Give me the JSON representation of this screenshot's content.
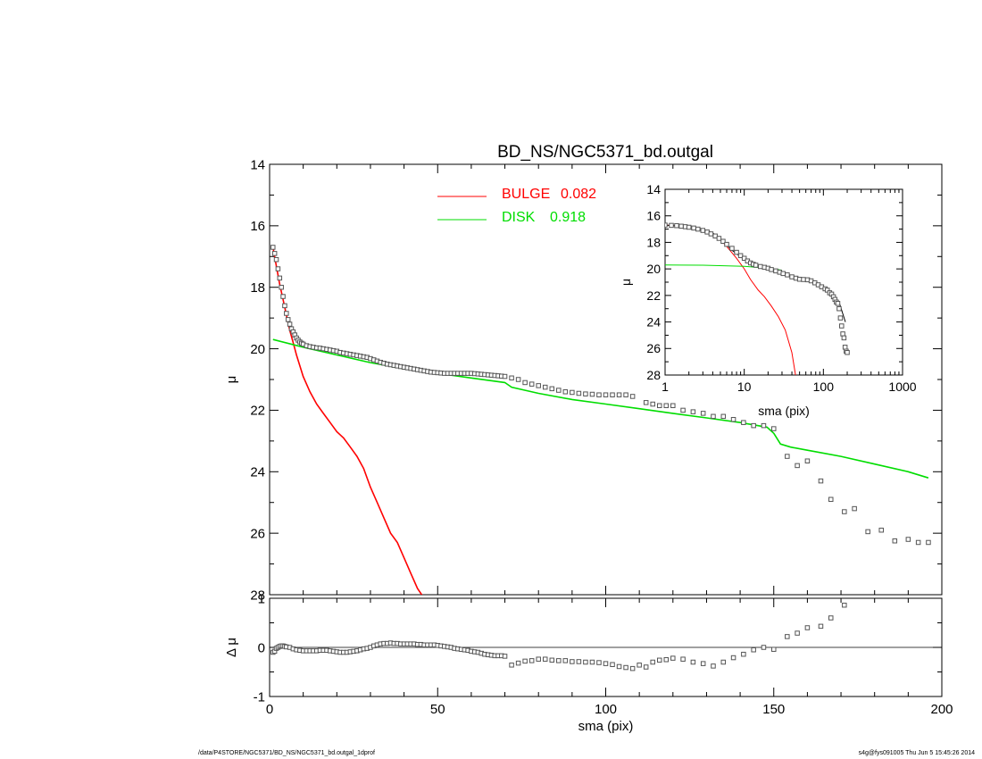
{
  "footer": {
    "path": "/data/P4STORE/NGC5371/BD_NS/NGC5371_bd.outgal_1dprof",
    "stamp": "s4g@fys091005  Thu Jun  5 15:45:26 2014"
  },
  "colors": {
    "bulge": "#ff0000",
    "disk": "#00dd00",
    "axes": "#000000",
    "points": "#555555"
  },
  "chart_data": [
    {
      "id": "main",
      "type": "line",
      "title": "BD_NS/NGC5371_bd.outgal",
      "xlabel": "",
      "ylabel": "μ",
      "xlim": [
        0,
        200
      ],
      "ylim": [
        28,
        14
      ],
      "y_inverted": true,
      "xticks": [
        0,
        50,
        100,
        150,
        200
      ],
      "yticks": [
        14,
        16,
        18,
        20,
        22,
        24,
        26,
        28
      ],
      "legend": [
        {
          "label": "BULGE",
          "value": "0.082",
          "color": "#ff0000"
        },
        {
          "label": "DISK",
          "value": "0.918",
          "color": "#00dd00"
        }
      ],
      "legend_placement": "top-center",
      "series": [
        {
          "name": "BULGE",
          "color": "#ff0000",
          "style": "line",
          "x": [
            1,
            2,
            3,
            4,
            5,
            6,
            7,
            8,
            10,
            12,
            14,
            16,
            18,
            20,
            22,
            24,
            26,
            28,
            30,
            32,
            34,
            36,
            38,
            40,
            42,
            44,
            46.5
          ],
          "y": [
            16.7,
            17.3,
            17.9,
            18.4,
            18.9,
            19.4,
            19.8,
            20.2,
            20.9,
            21.4,
            21.8,
            22.1,
            22.4,
            22.7,
            22.9,
            23.2,
            23.5,
            23.9,
            24.5,
            25.0,
            25.5,
            26.0,
            26.3,
            26.8,
            27.3,
            27.8,
            28.2
          ]
        },
        {
          "name": "DISK",
          "color": "#00dd00",
          "style": "line",
          "x": [
            1,
            10,
            20,
            30,
            40,
            50,
            60,
            70,
            72,
            80,
            90,
            100,
            110,
            120,
            130,
            140,
            148,
            150,
            152,
            155,
            160,
            170,
            180,
            190,
            196
          ],
          "y": [
            19.7,
            19.95,
            20.2,
            20.45,
            20.65,
            20.8,
            20.95,
            21.1,
            21.25,
            21.45,
            21.65,
            21.8,
            21.95,
            22.1,
            22.25,
            22.4,
            22.55,
            22.75,
            23.1,
            23.2,
            23.3,
            23.5,
            23.75,
            24.0,
            24.2
          ]
        },
        {
          "name": "data",
          "color": "#555555",
          "style": "squares",
          "x": [
            1,
            1.5,
            2,
            2.5,
            3,
            3.5,
            4,
            4.5,
            5,
            5.5,
            6,
            6.5,
            7,
            7.5,
            8,
            8.5,
            9,
            9.5,
            10,
            11,
            12,
            13,
            14,
            15,
            16,
            17,
            18,
            19,
            20,
            21,
            22,
            23,
            24,
            25,
            26,
            27,
            28,
            29,
            30,
            31,
            32,
            33,
            34,
            35,
            36,
            37,
            38,
            39,
            40,
            41,
            42,
            43,
            44,
            45,
            46,
            47,
            48,
            49,
            50,
            51,
            52,
            53,
            54,
            55,
            56,
            57,
            58,
            59,
            60,
            61,
            62,
            63,
            64,
            65,
            66,
            67,
            68,
            69,
            70,
            72,
            74,
            76,
            78,
            80,
            82,
            84,
            86,
            88,
            90,
            92,
            94,
            96,
            98,
            100,
            102,
            104,
            106,
            108,
            112,
            114,
            116,
            118,
            120,
            123,
            126,
            129,
            132,
            135,
            138,
            141,
            144,
            147,
            150,
            154,
            157,
            160,
            164,
            167,
            171,
            174,
            178,
            182,
            186,
            190,
            193,
            196
          ],
          "y": [
            16.7,
            16.9,
            17.1,
            17.4,
            17.7,
            18.0,
            18.3,
            18.6,
            18.85,
            19.05,
            19.2,
            19.35,
            19.45,
            19.55,
            19.65,
            19.72,
            19.78,
            19.82,
            19.85,
            19.9,
            19.93,
            19.95,
            19.97,
            19.98,
            20.0,
            20.02,
            20.04,
            20.06,
            20.08,
            20.12,
            20.14,
            20.16,
            20.18,
            20.2,
            20.22,
            20.24,
            20.26,
            20.28,
            20.32,
            20.36,
            20.4,
            20.44,
            20.47,
            20.5,
            20.52,
            20.54,
            20.56,
            20.58,
            20.6,
            20.62,
            20.64,
            20.66,
            20.68,
            20.7,
            20.72,
            20.74,
            20.76,
            20.77,
            20.78,
            20.79,
            20.8,
            20.8,
            20.8,
            20.8,
            20.8,
            20.8,
            20.8,
            20.8,
            20.8,
            20.81,
            20.82,
            20.83,
            20.84,
            20.85,
            20.86,
            20.87,
            20.88,
            20.89,
            20.9,
            20.95,
            21.0,
            21.1,
            21.15,
            21.2,
            21.25,
            21.3,
            21.35,
            21.4,
            21.42,
            21.45,
            21.47,
            21.48,
            21.5,
            21.5,
            21.5,
            21.5,
            21.5,
            21.55,
            21.75,
            21.8,
            21.85,
            21.85,
            21.85,
            22.0,
            22.05,
            22.1,
            22.2,
            22.2,
            22.3,
            22.4,
            22.5,
            22.5,
            22.6,
            23.5,
            23.8,
            23.65,
            24.3,
            24.9,
            25.3,
            25.2,
            25.95,
            25.9,
            26.25,
            26.2,
            26.3,
            26.3
          ]
        }
      ]
    },
    {
      "id": "residual",
      "type": "scatter",
      "xlabel": "sma (pix)",
      "ylabel": "Δ μ",
      "xlim": [
        0,
        200
      ],
      "ylim": [
        -1,
        1
      ],
      "xticks": [
        0,
        50,
        100,
        150,
        200
      ],
      "yticks": [
        -1,
        0,
        1
      ],
      "series": [
        {
          "name": "residual",
          "color": "#555555",
          "style": "squares",
          "x": [
            1,
            1.5,
            2,
            2.5,
            3,
            3.5,
            4,
            4.5,
            5,
            6,
            7,
            8,
            9,
            10,
            11,
            12,
            13,
            14,
            15,
            16,
            17,
            18,
            19,
            20,
            21,
            22,
            23,
            24,
            25,
            26,
            27,
            28,
            29,
            30,
            31,
            32,
            33,
            34,
            35,
            36,
            37,
            38,
            39,
            40,
            41,
            42,
            43,
            44,
            45,
            46,
            47,
            48,
            49,
            50,
            51,
            52,
            53,
            54,
            55,
            56,
            57,
            58,
            59,
            60,
            61,
            62,
            63,
            64,
            65,
            66,
            67,
            68,
            69,
            70,
            72,
            74,
            76,
            78,
            80,
            82,
            84,
            86,
            88,
            90,
            92,
            94,
            96,
            98,
            100,
            102,
            104,
            106,
            108,
            110,
            112,
            114,
            116,
            118,
            120,
            123,
            126,
            129,
            132,
            135,
            138,
            141,
            144,
            147,
            150,
            154,
            157,
            160,
            164,
            167,
            171
          ],
          "y": [
            -0.1,
            -0.08,
            -0.02,
            0.0,
            0.02,
            0.03,
            0.03,
            0.02,
            0.01,
            0.0,
            -0.03,
            -0.05,
            -0.06,
            -0.07,
            -0.07,
            -0.07,
            -0.07,
            -0.07,
            -0.06,
            -0.06,
            -0.06,
            -0.07,
            -0.08,
            -0.09,
            -0.1,
            -0.1,
            -0.1,
            -0.09,
            -0.08,
            -0.07,
            -0.05,
            -0.03,
            -0.02,
            0.0,
            0.03,
            0.05,
            0.07,
            0.08,
            0.08,
            0.09,
            0.08,
            0.08,
            0.07,
            0.07,
            0.07,
            0.07,
            0.07,
            0.06,
            0.06,
            0.05,
            0.05,
            0.05,
            0.05,
            0.04,
            0.03,
            0.02,
            0.01,
            0.0,
            -0.02,
            -0.03,
            -0.04,
            -0.05,
            -0.06,
            -0.08,
            -0.09,
            -0.1,
            -0.12,
            -0.14,
            -0.15,
            -0.16,
            -0.17,
            -0.17,
            -0.17,
            -0.18,
            -0.36,
            -0.32,
            -0.28,
            -0.27,
            -0.24,
            -0.24,
            -0.26,
            -0.27,
            -0.27,
            -0.29,
            -0.29,
            -0.3,
            -0.3,
            -0.31,
            -0.33,
            -0.35,
            -0.39,
            -0.41,
            -0.43,
            -0.36,
            -0.4,
            -0.3,
            -0.26,
            -0.25,
            -0.22,
            -0.24,
            -0.3,
            -0.33,
            -0.38,
            -0.3,
            -0.21,
            -0.14,
            -0.05,
            0.0,
            -0.04,
            0.22,
            0.29,
            0.4,
            0.43,
            0.6,
            0.86
          ]
        }
      ]
    },
    {
      "id": "inset",
      "type": "line",
      "xlabel": "sma (pix)",
      "ylabel": "μ",
      "xlim": [
        1,
        1000
      ],
      "xscale": "log",
      "ylim": [
        28,
        14
      ],
      "y_inverted": true,
      "xticks": [
        1,
        10,
        100,
        1000
      ],
      "yticks": [
        14,
        16,
        18,
        20,
        22,
        24,
        26,
        28
      ],
      "series": [
        {
          "name": "BULGE",
          "color": "#ff0000",
          "style": "line",
          "x": [
            1,
            2,
            3,
            4,
            5,
            6,
            8,
            10,
            12,
            15,
            18,
            22,
            27,
            33,
            40,
            45
          ],
          "y": [
            16.7,
            16.8,
            17.0,
            17.3,
            17.8,
            18.3,
            19.2,
            20.0,
            20.8,
            21.6,
            22.1,
            22.8,
            23.6,
            24.6,
            26.3,
            28.2
          ]
        },
        {
          "name": "DISK",
          "color": "#00dd00",
          "style": "line",
          "x": [
            1,
            3,
            10,
            20,
            30
          ],
          "y": [
            19.7,
            19.72,
            19.8,
            19.95,
            20.1
          ]
        },
        {
          "name": "model",
          "color": "#000000",
          "style": "line",
          "x": [
            1,
            2,
            3,
            4,
            5,
            7,
            10,
            15,
            20,
            30,
            50,
            80,
            100,
            130,
            160,
            190
          ],
          "y": [
            16.7,
            16.8,
            17.0,
            17.3,
            17.7,
            18.6,
            19.3,
            19.8,
            20.0,
            20.3,
            20.7,
            21.1,
            21.4,
            21.8,
            22.6,
            24.0
          ]
        },
        {
          "name": "data",
          "color": "#555555",
          "style": "squares",
          "x": [
            1,
            1.2,
            1.4,
            1.6,
            1.8,
            2,
            2.3,
            2.6,
            3,
            3.4,
            3.8,
            4.3,
            4.8,
            5.4,
            6,
            7,
            8,
            9,
            10,
            11,
            12,
            13,
            14,
            16,
            18,
            20,
            22,
            25,
            28,
            31,
            35,
            40,
            45,
            50,
            56,
            63,
            70,
            78,
            86,
            95,
            105,
            112,
            120,
            127,
            134,
            140,
            146,
            152,
            158,
            164,
            170,
            176,
            182,
            188,
            194,
            200
          ],
          "y": [
            16.7,
            16.72,
            16.74,
            16.78,
            16.82,
            16.86,
            16.92,
            17.0,
            17.1,
            17.22,
            17.36,
            17.52,
            17.7,
            17.92,
            18.15,
            18.45,
            18.75,
            19.0,
            19.2,
            19.4,
            19.55,
            19.65,
            19.72,
            19.82,
            19.88,
            19.95,
            20.05,
            20.15,
            20.25,
            20.35,
            20.45,
            20.6,
            20.7,
            20.78,
            20.8,
            20.82,
            20.9,
            21.05,
            21.2,
            21.35,
            21.5,
            21.6,
            21.8,
            21.9,
            22.1,
            22.3,
            22.5,
            22.6,
            23.0,
            23.7,
            24.3,
            24.9,
            25.2,
            25.9,
            26.2,
            26.3
          ]
        }
      ]
    }
  ]
}
